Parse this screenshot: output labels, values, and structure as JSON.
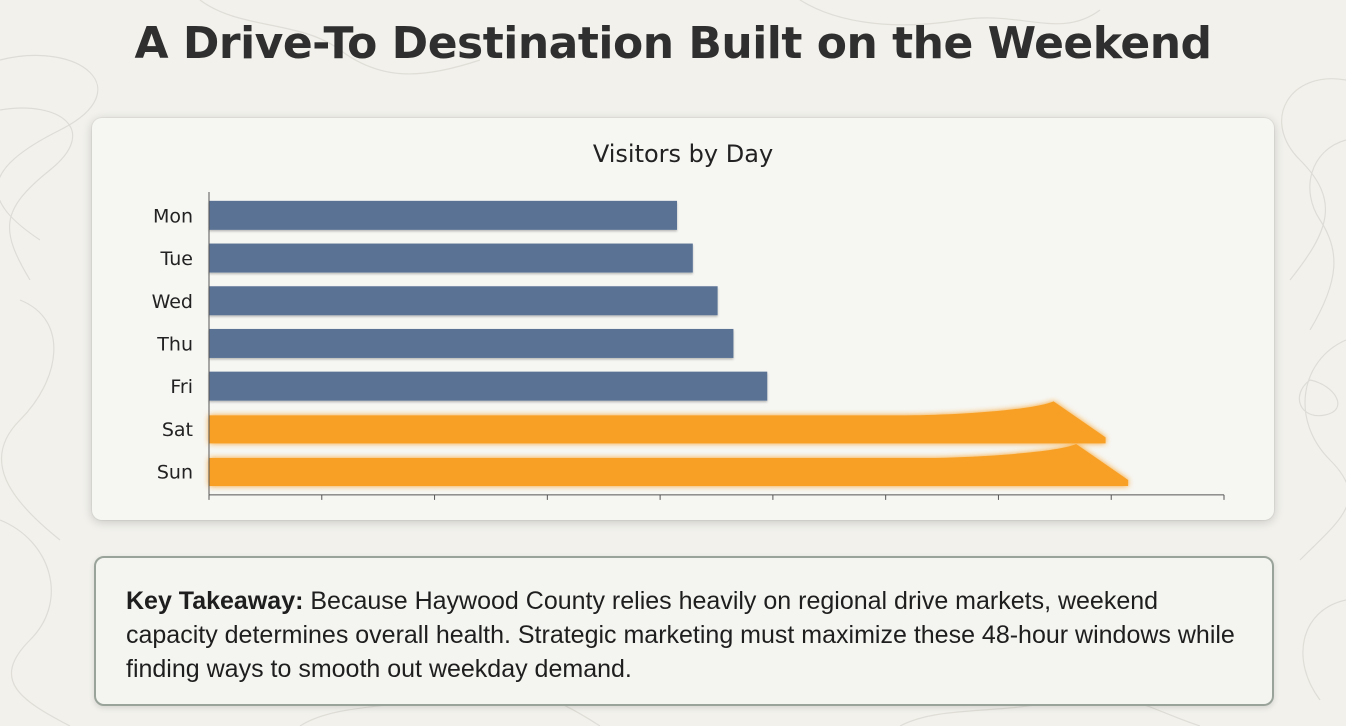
{
  "page": {
    "title": "A Drive-To Destination Built on the Weekend"
  },
  "chart_data": {
    "type": "bar",
    "orientation": "horizontal",
    "title": "Visitors by Day",
    "xlabel": "",
    "ylabel": "",
    "categories": [
      "Mon",
      "Tue",
      "Wed",
      "Thu",
      "Fri",
      "Sat",
      "Sun"
    ],
    "values": [
      41.5,
      42.9,
      45.1,
      46.5,
      49.5,
      79.5,
      81.5
    ],
    "xlim": [
      0,
      90
    ],
    "x_ticks": [
      0,
      10,
      20,
      30,
      40,
      50,
      60,
      70,
      80,
      90
    ],
    "tick_labels_shown": false,
    "grid": false,
    "legend": "none",
    "colors": {
      "weekday": "#5a7395",
      "weekend": "#f8a025"
    },
    "highlight": [
      "Sat",
      "Sun"
    ]
  },
  "takeaway": {
    "label": "Key Takeaway:",
    "text": " Because Haywood County relies heavily on regional drive markets, weekend capacity determines overall health. Strategic marketing must maximize these 48-hour windows while finding ways to smooth out weekday demand."
  }
}
